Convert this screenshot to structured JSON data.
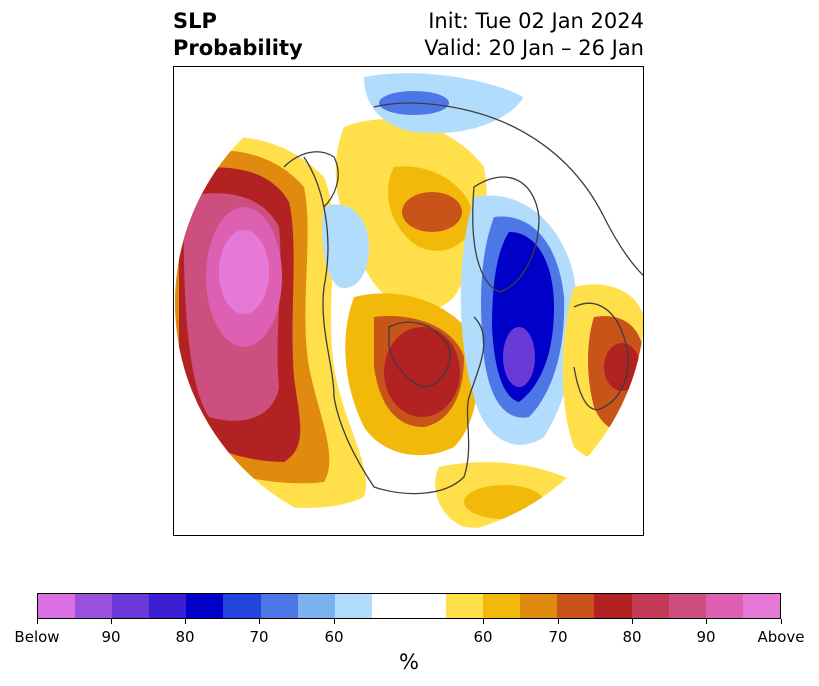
{
  "title": {
    "variable": "SLP",
    "subtitle": "Probability",
    "init": "Init: Tue 02 Jan 2024",
    "valid": "Valid: 20 Jan – 26 Jan"
  },
  "colorbar": {
    "unit": "%",
    "colors": [
      "#d96fe3",
      "#9a52de",
      "#6a3ad9",
      "#3b1fd3",
      "#0000c8",
      "#2244dd",
      "#4d77e6",
      "#7ab2f0",
      "#b1dcfb",
      "#ffffff",
      "#ffffff",
      "#ffe04a",
      "#f2b90a",
      "#e08a10",
      "#c8541a",
      "#b22222",
      "#c23a55",
      "#cc4f80",
      "#dd60b3",
      "#e679d8"
    ],
    "tick_labels": [
      "Below",
      "90",
      "80",
      "70",
      "60",
      "60",
      "70",
      "80",
      "90",
      "Above"
    ]
  },
  "map": {
    "projection": "north-polar stereographic",
    "palette": {
      "coast": "#3d3d3d",
      "above_light": "#ffe04a",
      "above_mid": "#f2b90a",
      "above_strong": "#c8541a",
      "above_max": "#e679d8",
      "below_light": "#b1dcfb",
      "below_mid": "#4d77e6",
      "below_strong": "#0000c8",
      "below_max": "#6a3ad9"
    }
  }
}
